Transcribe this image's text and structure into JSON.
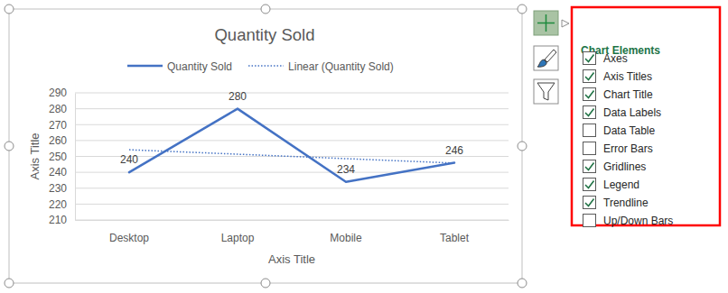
{
  "chart_data": {
    "type": "line",
    "title": "Quantity Sold",
    "x_label": "Axis Title",
    "y_label": "Axis Title",
    "categories": [
      "Desktop",
      "Laptop",
      "Mobile",
      "Tablet"
    ],
    "series": [
      {
        "name": "Quantity Sold",
        "color": "#4472c4",
        "line_style": "solid",
        "data_labels": true,
        "values": [
          240,
          280,
          234,
          246
        ]
      },
      {
        "name": "Linear (Quantity Sold)",
        "color": "#4472c4",
        "type": "trendline",
        "line_style": "dotted",
        "values": [
          254.2,
          251.4,
          248.6,
          245.8
        ]
      }
    ],
    "ylim": [
      210,
      290
    ],
    "yticks": [
      210,
      220,
      230,
      240,
      250,
      260,
      270,
      280,
      290
    ],
    "grid": true,
    "legend": "top"
  },
  "chart_elements_panel": {
    "title": "Chart Elements",
    "items": [
      {
        "label": "Axes",
        "checked": true
      },
      {
        "label": "Axis Titles",
        "checked": true
      },
      {
        "label": "Chart Title",
        "checked": true
      },
      {
        "label": "Data Labels",
        "checked": true
      },
      {
        "label": "Data Table",
        "checked": false
      },
      {
        "label": "Error Bars",
        "checked": false
      },
      {
        "label": "Gridlines",
        "checked": true
      },
      {
        "label": "Legend",
        "checked": true
      },
      {
        "label": "Trendline",
        "checked": true
      },
      {
        "label": "Up/Down Bars",
        "checked": false
      }
    ]
  }
}
